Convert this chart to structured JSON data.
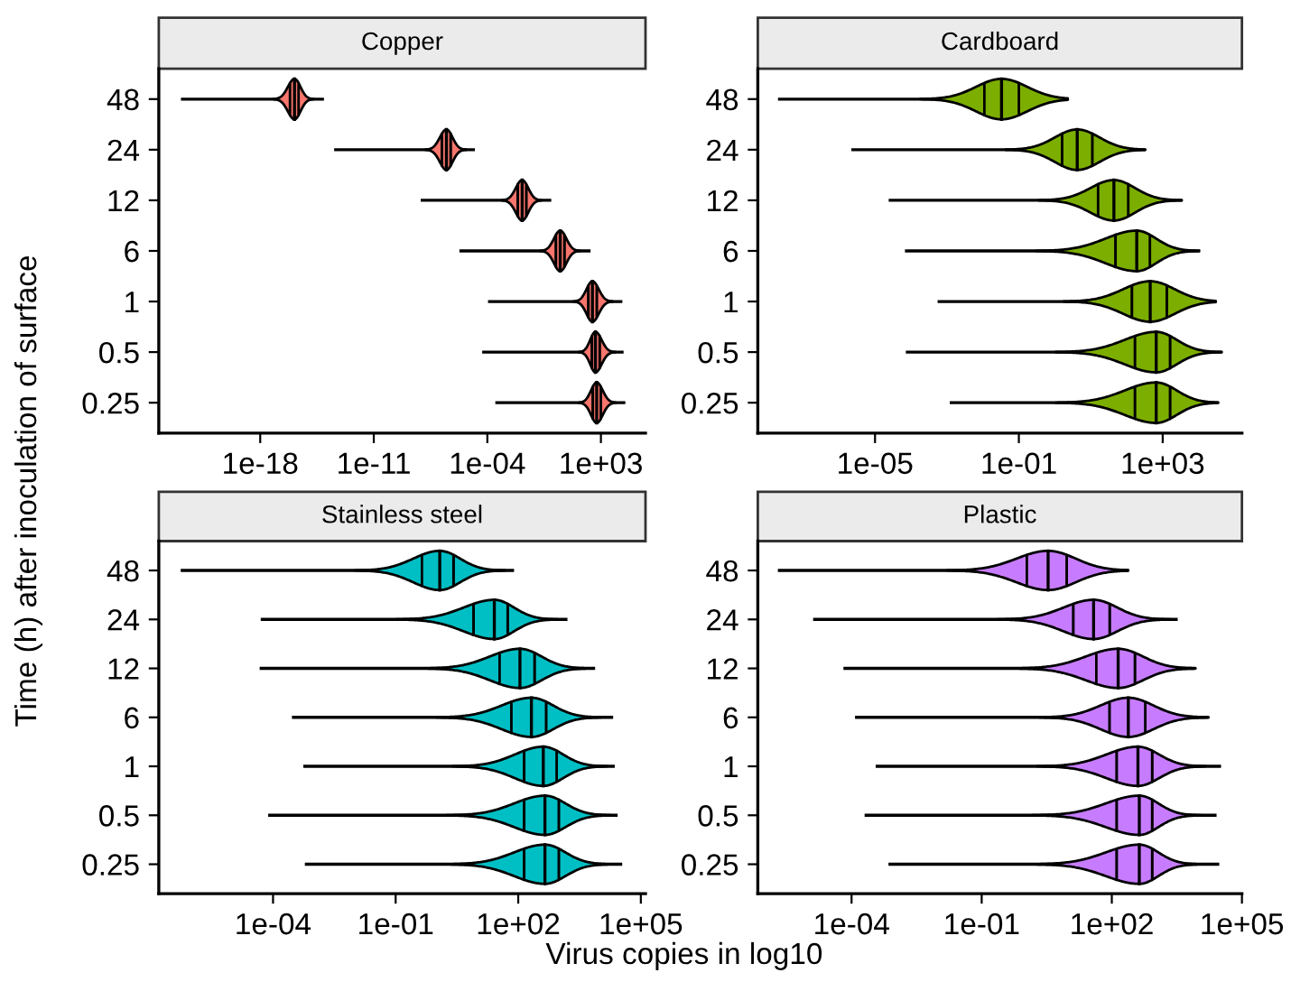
{
  "chart_data": [
    {
      "type": "box",
      "orientation": "horizontal",
      "title": "Copper",
      "ylabel": "Time (h) after inoculation of surface",
      "color": "#f8766d",
      "log": "x",
      "categories": [
        "48",
        "24",
        "12",
        "6",
        "1",
        "0.5",
        "0.25"
      ],
      "xlim": [
        5.6e-25,
        560000.0
      ],
      "xticks": [
        {
          "value": 1e-18,
          "label": "1e-18"
        },
        {
          "value": 1e-11,
          "label": "1e-11"
        },
        {
          "value": 0.0001,
          "label": "1e-04"
        },
        {
          "value": 1000.0,
          "label": "1e+03"
        }
      ],
      "boxes": [
        {
          "low": 1.3e-23,
          "q1": 6.9e-17,
          "median": 1.3e-16,
          "q3": 2.3e-16,
          "high": 8.5e-15
        },
        {
          "low": 3.6e-14,
          "q1": 1.6e-07,
          "median": 3e-07,
          "q3": 5.4e-07,
          "high": 1.7e-05
        },
        {
          "low": 7.8e-09,
          "q1": 0.0076,
          "median": 0.014,
          "q3": 0.025,
          "high": 0.87
        },
        {
          "low": 1.9e-06,
          "q1": 1.7,
          "median": 3.1,
          "q3": 5.6,
          "high": 230
        },
        {
          "low": 0.00011,
          "q1": 170,
          "median": 300,
          "q3": 550,
          "high": 21000
        },
        {
          "low": 4.8e-05,
          "q1": 280,
          "median": 460,
          "q3": 830,
          "high": 25000
        },
        {
          "low": 0.00031,
          "q1": 320,
          "median": 550,
          "q3": 980,
          "high": 32000
        }
      ]
    },
    {
      "type": "box",
      "orientation": "horizontal",
      "title": "Cardboard",
      "color": "#7cae00",
      "log": "x",
      "categories": [
        "48",
        "24",
        "12",
        "6",
        "1",
        "0.5",
        "0.25"
      ],
      "xlim": [
        5.5e-09,
        160000.0
      ],
      "xticks": [
        {
          "value": 1e-05,
          "label": "1e-05"
        },
        {
          "value": 0.1,
          "label": "1e-01"
        },
        {
          "value": 1000.0,
          "label": "1e+03"
        }
      ],
      "boxes": [
        {
          "low": 2e-08,
          "q1": 0.011,
          "median": 0.033,
          "q3": 0.1,
          "high": 2.3
        },
        {
          "low": 2.2e-06,
          "q1": 1.6,
          "median": 4.2,
          "q3": 11,
          "high": 330
        },
        {
          "low": 2.4e-05,
          "q1": 16,
          "median": 44,
          "q3": 110,
          "high": 3500
        },
        {
          "low": 6.8e-05,
          "q1": 49,
          "median": 190,
          "q3": 440,
          "high": 11000
        },
        {
          "low": 0.00055,
          "q1": 140,
          "median": 450,
          "q3": 1300,
          "high": 30000
        },
        {
          "low": 7.2e-05,
          "q1": 170,
          "median": 660,
          "q3": 1600,
          "high": 44000
        },
        {
          "low": 0.0012,
          "q1": 170,
          "median": 660,
          "q3": 1600,
          "high": 35000
        }
      ]
    },
    {
      "type": "box",
      "orientation": "horizontal",
      "title": "Stainless steel",
      "xlabel": "Virus copies in log10",
      "color": "#00bfc4",
      "log": "x",
      "categories": [
        "48",
        "24",
        "12",
        "6",
        "1",
        "0.5",
        "0.25"
      ],
      "xlim": [
        1.6e-07,
        130000.0
      ],
      "xticks": [
        {
          "value": 0.0001,
          "label": "1e-04"
        },
        {
          "value": 0.1,
          "label": "1e-01"
        },
        {
          "value": 100,
          "label": "1e+02"
        },
        {
          "value": 100000.0,
          "label": "1e+05"
        }
      ],
      "boxes": [
        {
          "low": 5.5e-07,
          "q1": 0.44,
          "median": 1.2,
          "q3": 2.6,
          "high": 79
        },
        {
          "low": 5e-05,
          "q1": 8.1,
          "median": 26,
          "q3": 55,
          "high": 1600
        },
        {
          "low": 4.7e-05,
          "q1": 35,
          "median": 110,
          "q3": 250,
          "high": 7600
        },
        {
          "low": 0.00029,
          "q1": 68,
          "median": 210,
          "q3": 480,
          "high": 21000
        },
        {
          "low": 0.00055,
          "q1": 140,
          "median": 410,
          "q3": 870,
          "high": 23000
        },
        {
          "low": 7.6e-05,
          "q1": 140,
          "median": 450,
          "q3": 980,
          "high": 27000
        },
        {
          "low": 0.0006,
          "q1": 140,
          "median": 450,
          "q3": 980,
          "high": 35000
        }
      ]
    },
    {
      "type": "box",
      "orientation": "horizontal",
      "title": "Plastic",
      "color": "#c77cff",
      "log": "x",
      "categories": [
        "48",
        "24",
        "12",
        "6",
        "1",
        "0.5",
        "0.25"
      ],
      "xlim": [
        6.9e-07,
        100000.0
      ],
      "xticks": [
        {
          "value": 0.0001,
          "label": "1e-04"
        },
        {
          "value": 0.1,
          "label": "1e-01"
        },
        {
          "value": 100,
          "label": "1e+02"
        },
        {
          "value": 100000.0,
          "label": "1e+05"
        }
      ],
      "boxes": [
        {
          "low": 2e-06,
          "q1": 1.1,
          "median": 3.4,
          "q3": 9.1,
          "high": 240
        },
        {
          "low": 1.3e-05,
          "q1": 13,
          "median": 38,
          "q3": 89,
          "high": 3300
        },
        {
          "low": 6.5e-05,
          "q1": 44,
          "median": 140,
          "q3": 340,
          "high": 8500
        },
        {
          "low": 0.00012,
          "q1": 89,
          "median": 240,
          "q3": 590,
          "high": 17000
        },
        {
          "low": 0.00036,
          "q1": 130,
          "median": 400,
          "q3": 850,
          "high": 33000
        },
        {
          "low": 0.0002,
          "q1": 130,
          "median": 430,
          "q3": 850,
          "high": 26000
        },
        {
          "low": 0.00071,
          "q1": 130,
          "median": 430,
          "q3": 850,
          "high": 30000
        }
      ]
    }
  ]
}
